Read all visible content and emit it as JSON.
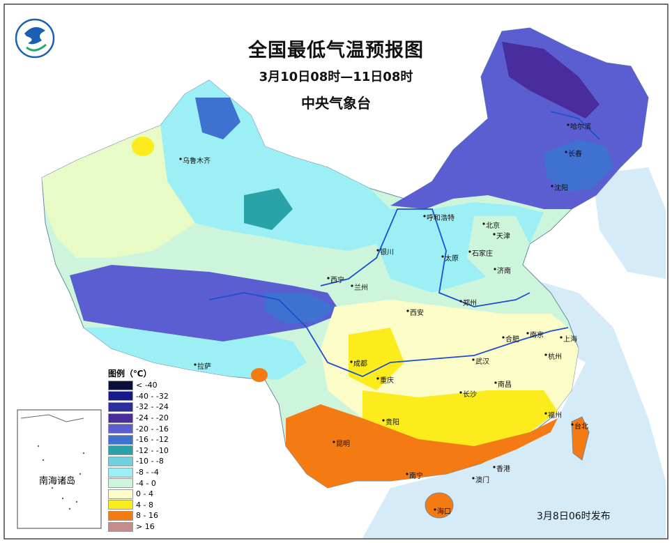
{
  "title": "全国最低气温预报图",
  "period": "3月10日08时—11日08时",
  "agency": "中央气象台",
  "issue_time": "3月8日06时发布",
  "inset_label": "南海诸岛",
  "legend": {
    "title": "图例（℃）",
    "items": [
      {
        "label": "< -40",
        "color": "#0a0f3a"
      },
      {
        "label": "-40 - -32",
        "color": "#141a8c"
      },
      {
        "label": "-32 - -24",
        "color": "#2a2f9e"
      },
      {
        "label": "-24 - -20",
        "color": "#4a2d9c"
      },
      {
        "label": "-20 - -16",
        "color": "#5a5ed0"
      },
      {
        "label": "-16 - -12",
        "color": "#3f72d0"
      },
      {
        "label": "-12 - -10",
        "color": "#2aa3a8"
      },
      {
        "label": "-10 - -8",
        "color": "#6fd1de"
      },
      {
        "label": "-8 - -4",
        "color": "#9cf0f5"
      },
      {
        "label": "-4 - 0",
        "color": "#cdf5dc"
      },
      {
        "label": "0 - 4",
        "color": "#fcfcc8"
      },
      {
        "label": "4 - 8",
        "color": "#fcec1e"
      },
      {
        "label": "8 - 16",
        "color": "#f47a14"
      },
      {
        "label": "> 16",
        "color": "#c48c8c"
      }
    ]
  },
  "cities": [
    {
      "name": "乌鲁木齐"
    },
    {
      "name": "哈尔滨"
    },
    {
      "name": "长春"
    },
    {
      "name": "沈阳"
    },
    {
      "name": "呼和浩特"
    },
    {
      "name": "北京"
    },
    {
      "name": "天津"
    },
    {
      "name": "银川"
    },
    {
      "name": "石家庄"
    },
    {
      "name": "太原"
    },
    {
      "name": "济南"
    },
    {
      "name": "西宁"
    },
    {
      "name": "兰州"
    },
    {
      "name": "郑州"
    },
    {
      "name": "西安"
    },
    {
      "name": "合肥"
    },
    {
      "name": "南京"
    },
    {
      "name": "上海"
    },
    {
      "name": "杭州"
    },
    {
      "name": "武汉"
    },
    {
      "name": "成都"
    },
    {
      "name": "拉萨"
    },
    {
      "name": "重庆"
    },
    {
      "name": "长沙"
    },
    {
      "name": "南昌"
    },
    {
      "name": "贵阳"
    },
    {
      "name": "福州"
    },
    {
      "name": "台北"
    },
    {
      "name": "昆明"
    },
    {
      "name": "南宁"
    },
    {
      "name": "香港"
    },
    {
      "name": "澳门"
    },
    {
      "name": "海口"
    }
  ]
}
